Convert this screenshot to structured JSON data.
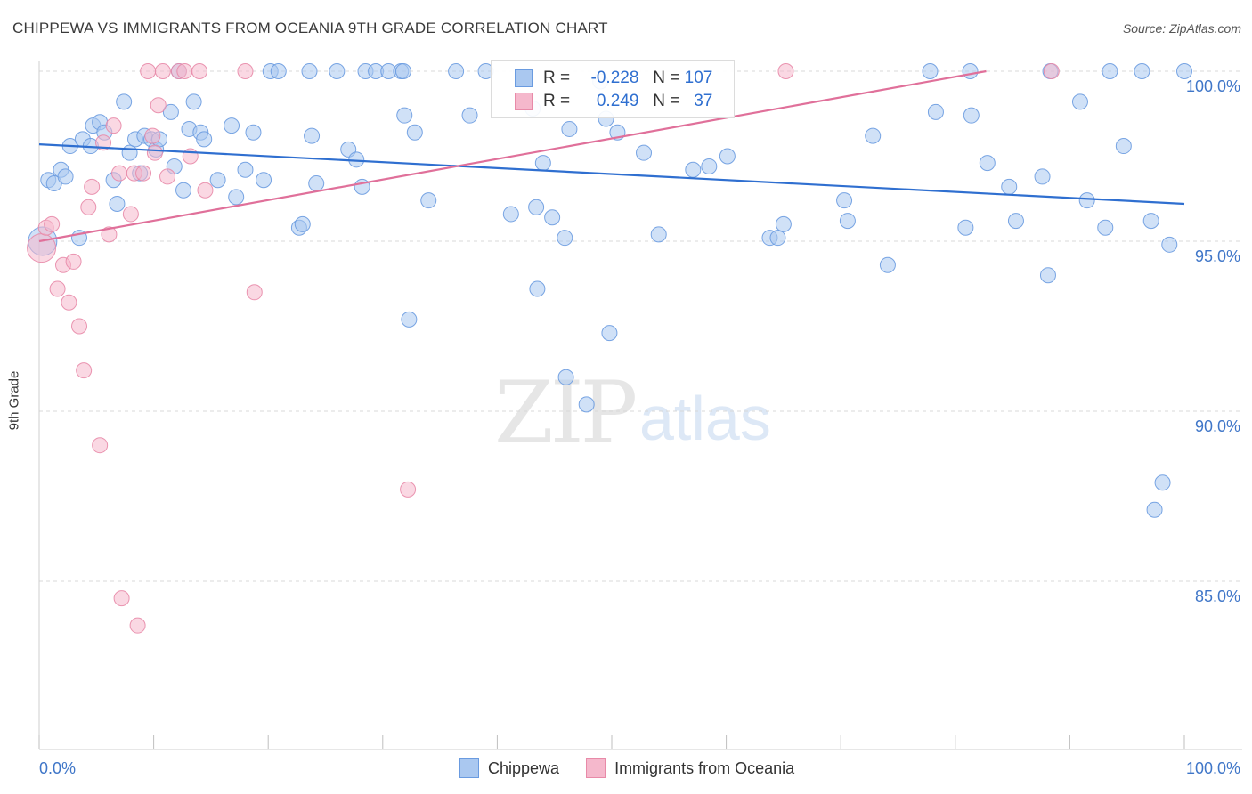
{
  "header": {
    "title": "CHIPPEWA VS IMMIGRANTS FROM OCEANIA 9TH GRADE CORRELATION CHART",
    "source": "Source: ZipAtlas.com"
  },
  "watermark": {
    "zip": "ZIP",
    "atlas": "atlas"
  },
  "colors": {
    "blue_fill": "#aac8f0",
    "blue_stroke": "#6a9be0",
    "blue_line": "#2f6fd0",
    "pink_fill": "#f5b8cc",
    "pink_stroke": "#e88aa8",
    "pink_line": "#e0709a",
    "tick_label": "#3f76c8",
    "grid": "#d8d8d8"
  },
  "legend": {
    "series1": {
      "r_label": "R =",
      "r_value": "-0.228",
      "n_label": "N =",
      "n_value": "107"
    },
    "series2": {
      "r_label": "R =",
      "r_value": "0.249",
      "n_label": "N =",
      "n_value": "37"
    }
  },
  "bottom_legend": {
    "series1": "Chippewa",
    "series2": "Immigrants from Oceania"
  },
  "chart_data": {
    "type": "scatter",
    "ylabel": "9th Grade",
    "xlim": [
      0,
      100
    ],
    "ylim": [
      80.5,
      100.7
    ],
    "x_tick_labels": [
      {
        "value": 0,
        "label": "0.0%"
      },
      {
        "value": 100,
        "label": "100.0%"
      }
    ],
    "y_ticks": [
      {
        "value": 100,
        "label": "100.0%"
      },
      {
        "value": 95,
        "label": "95.0%"
      },
      {
        "value": 90,
        "label": "90.0%"
      },
      {
        "value": 85,
        "label": "85.0%"
      }
    ],
    "x_minor_ticks": [
      0,
      10,
      20,
      30,
      40,
      50,
      60,
      70,
      80,
      90,
      100
    ],
    "grid": "horizontal dashed",
    "series": [
      {
        "name": "Chippewa",
        "trend": {
          "x": [
            0,
            100
          ],
          "y": [
            97.85,
            96.1
          ]
        },
        "points": [
          [
            0.3,
            95.0
          ],
          [
            0.8,
            96.8
          ],
          [
            1.3,
            96.7
          ],
          [
            1.9,
            97.1
          ],
          [
            2.3,
            96.9
          ],
          [
            2.7,
            97.8
          ],
          [
            3.5,
            95.1
          ],
          [
            3.8,
            98.0
          ],
          [
            4.5,
            97.8
          ],
          [
            4.7,
            98.4
          ],
          [
            5.3,
            98.5
          ],
          [
            5.7,
            98.2
          ],
          [
            6.5,
            96.8
          ],
          [
            6.8,
            96.1
          ],
          [
            7.4,
            99.1
          ],
          [
            7.9,
            97.6
          ],
          [
            8.4,
            98.0
          ],
          [
            8.8,
            97.0
          ],
          [
            9.2,
            98.1
          ],
          [
            9.8,
            98.0
          ],
          [
            10.2,
            97.7
          ],
          [
            10.5,
            98.0
          ],
          [
            11.5,
            98.8
          ],
          [
            11.8,
            97.2
          ],
          [
            12.2,
            100.0
          ],
          [
            12.6,
            96.5
          ],
          [
            13.1,
            98.3
          ],
          [
            13.5,
            99.1
          ],
          [
            14.1,
            98.2
          ],
          [
            14.4,
            98.0
          ],
          [
            15.6,
            96.8
          ],
          [
            16.8,
            98.4
          ],
          [
            17.2,
            96.3
          ],
          [
            18.0,
            97.1
          ],
          [
            18.7,
            98.2
          ],
          [
            19.6,
            96.8
          ],
          [
            20.2,
            100.0
          ],
          [
            20.9,
            100.0
          ],
          [
            22.7,
            95.4
          ],
          [
            23.0,
            95.5
          ],
          [
            23.6,
            100.0
          ],
          [
            23.8,
            98.1
          ],
          [
            24.2,
            96.7
          ],
          [
            26.0,
            100.0
          ],
          [
            27.0,
            97.7
          ],
          [
            27.7,
            97.4
          ],
          [
            28.2,
            96.6
          ],
          [
            28.5,
            100.0
          ],
          [
            29.4,
            100.0
          ],
          [
            30.5,
            100.0
          ],
          [
            31.6,
            100.0
          ],
          [
            31.8,
            100.0
          ],
          [
            31.9,
            98.7
          ],
          [
            32.3,
            92.7
          ],
          [
            32.8,
            98.2
          ],
          [
            34.0,
            96.2
          ],
          [
            36.4,
            100.0
          ],
          [
            37.6,
            98.7
          ],
          [
            39.0,
            100.0
          ],
          [
            41.2,
            95.8
          ],
          [
            43.1,
            98.9
          ],
          [
            43.4,
            96.0
          ],
          [
            43.5,
            93.6
          ],
          [
            44.0,
            97.3
          ],
          [
            44.8,
            95.7
          ],
          [
            45.9,
            95.1
          ],
          [
            46.0,
            91.0
          ],
          [
            46.3,
            98.3
          ],
          [
            47.8,
            90.2
          ],
          [
            49.0,
            99.7
          ],
          [
            49.5,
            98.6
          ],
          [
            49.8,
            92.3
          ],
          [
            50.5,
            98.2
          ],
          [
            52.8,
            97.6
          ],
          [
            54.1,
            95.2
          ],
          [
            57.1,
            97.1
          ],
          [
            58.5,
            97.2
          ],
          [
            60.1,
            97.5
          ],
          [
            63.8,
            95.1
          ],
          [
            64.5,
            95.1
          ],
          [
            65.0,
            95.5
          ],
          [
            70.3,
            96.2
          ],
          [
            70.6,
            95.6
          ],
          [
            72.8,
            98.1
          ],
          [
            74.1,
            94.3
          ],
          [
            77.8,
            100.0
          ],
          [
            78.3,
            98.8
          ],
          [
            80.9,
            95.4
          ],
          [
            81.3,
            100.0
          ],
          [
            81.4,
            98.7
          ],
          [
            82.8,
            97.3
          ],
          [
            84.7,
            96.6
          ],
          [
            85.3,
            95.6
          ],
          [
            87.6,
            96.9
          ],
          [
            88.1,
            94.0
          ],
          [
            88.3,
            100.0
          ],
          [
            90.9,
            99.1
          ],
          [
            91.5,
            96.2
          ],
          [
            93.1,
            95.4
          ],
          [
            93.5,
            100.0
          ],
          [
            94.7,
            97.8
          ],
          [
            96.3,
            100.0
          ],
          [
            97.1,
            95.6
          ],
          [
            97.4,
            87.1
          ],
          [
            98.1,
            87.9
          ],
          [
            98.7,
            94.9
          ],
          [
            100.0,
            100.0
          ]
        ]
      },
      {
        "name": "Immigrants from Oceania",
        "trend": {
          "x": [
            0,
            82.7
          ],
          "y": [
            95.0,
            100.0
          ]
        },
        "points": [
          [
            0.2,
            94.8
          ],
          [
            0.6,
            95.4
          ],
          [
            1.1,
            95.5
          ],
          [
            1.6,
            93.6
          ],
          [
            2.1,
            94.3
          ],
          [
            2.6,
            93.2
          ],
          [
            3.0,
            94.4
          ],
          [
            3.5,
            92.5
          ],
          [
            3.9,
            91.2
          ],
          [
            4.3,
            96.0
          ],
          [
            4.6,
            96.6
          ],
          [
            5.3,
            89.0
          ],
          [
            5.6,
            97.9
          ],
          [
            6.1,
            95.2
          ],
          [
            6.5,
            98.4
          ],
          [
            7.0,
            97.0
          ],
          [
            7.2,
            84.5
          ],
          [
            8.0,
            95.8
          ],
          [
            8.3,
            97.0
          ],
          [
            8.6,
            83.7
          ],
          [
            9.1,
            97.0
          ],
          [
            9.5,
            100.0
          ],
          [
            9.9,
            98.1
          ],
          [
            10.1,
            97.6
          ],
          [
            10.4,
            99.0
          ],
          [
            10.8,
            100.0
          ],
          [
            11.2,
            96.9
          ],
          [
            12.2,
            100.0
          ],
          [
            12.7,
            100.0
          ],
          [
            13.2,
            97.5
          ],
          [
            14.0,
            100.0
          ],
          [
            14.5,
            96.5
          ],
          [
            18.0,
            100.0
          ],
          [
            18.8,
            93.5
          ],
          [
            32.2,
            87.7
          ],
          [
            65.2,
            100.0
          ],
          [
            88.4,
            100.0
          ]
        ]
      }
    ]
  }
}
